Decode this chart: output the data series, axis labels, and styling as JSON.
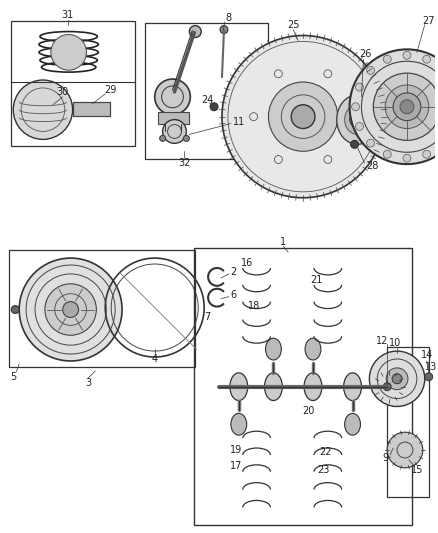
{
  "bg_color": "#ffffff",
  "fig_width": 4.38,
  "fig_height": 5.33,
  "dpi": 100,
  "line_color": "#333333",
  "text_color": "#222222",
  "font_size": 7.0
}
